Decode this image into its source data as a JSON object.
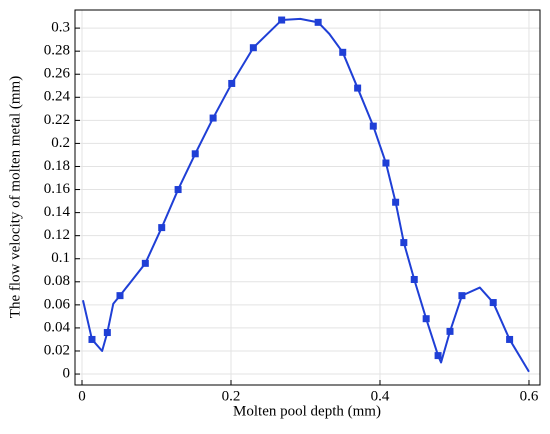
{
  "chart_data": {
    "type": "line",
    "x_label": "Molten pool depth (mm)",
    "y_label": "The flow velocity of molten metal (mm)",
    "xlim": [
      -0.0094,
      0.6148
    ],
    "ylim": [
      -0.0095,
      0.3157
    ],
    "xticks": [
      0,
      0.2,
      0.4,
      0.6
    ],
    "yticks": [
      0,
      0.02,
      0.04,
      0.06,
      0.08,
      0.1,
      0.12,
      0.14,
      0.16,
      0.18,
      0.2,
      0.22,
      0.24,
      0.26,
      0.28,
      0.3
    ],
    "grid": true,
    "series": [
      {
        "style": "line",
        "color": "#1f3fd6",
        "x": [
          0.0013,
          0.0134,
          0.027,
          0.034,
          0.042,
          0.051,
          0.085,
          0.107,
          0.129,
          0.152,
          0.176,
          0.201,
          0.23,
          0.268,
          0.293,
          0.317,
          0.332,
          0.35,
          0.37,
          0.391,
          0.408,
          0.421,
          0.432,
          0.446,
          0.462,
          0.478,
          0.482,
          0.494,
          0.51,
          0.534,
          0.552,
          0.574,
          0.6
        ],
        "values": [
          0.064,
          0.03,
          0.02,
          0.036,
          0.061,
          0.068,
          0.096,
          0.127,
          0.16,
          0.191,
          0.222,
          0.252,
          0.283,
          0.307,
          0.308,
          0.305,
          0.295,
          0.279,
          0.248,
          0.215,
          0.183,
          0.149,
          0.114,
          0.082,
          0.048,
          0.016,
          0.01,
          0.037,
          0.068,
          0.075,
          0.062,
          0.03,
          0.002
        ]
      },
      {
        "style": "markers",
        "color": "#1f3fd6",
        "x": [
          0.0134,
          0.034,
          0.051,
          0.085,
          0.107,
          0.129,
          0.152,
          0.176,
          0.201,
          0.23,
          0.268,
          0.317,
          0.35,
          0.37,
          0.391,
          0.408,
          0.421,
          0.432,
          0.446,
          0.462,
          0.478,
          0.494,
          0.51,
          0.552,
          0.574
        ],
        "values": [
          0.03,
          0.036,
          0.068,
          0.096,
          0.127,
          0.16,
          0.191,
          0.222,
          0.252,
          0.283,
          0.307,
          0.305,
          0.279,
          0.248,
          0.215,
          0.183,
          0.149,
          0.114,
          0.082,
          0.048,
          0.016,
          0.037,
          0.068,
          0.062,
          0.03
        ]
      }
    ]
  }
}
